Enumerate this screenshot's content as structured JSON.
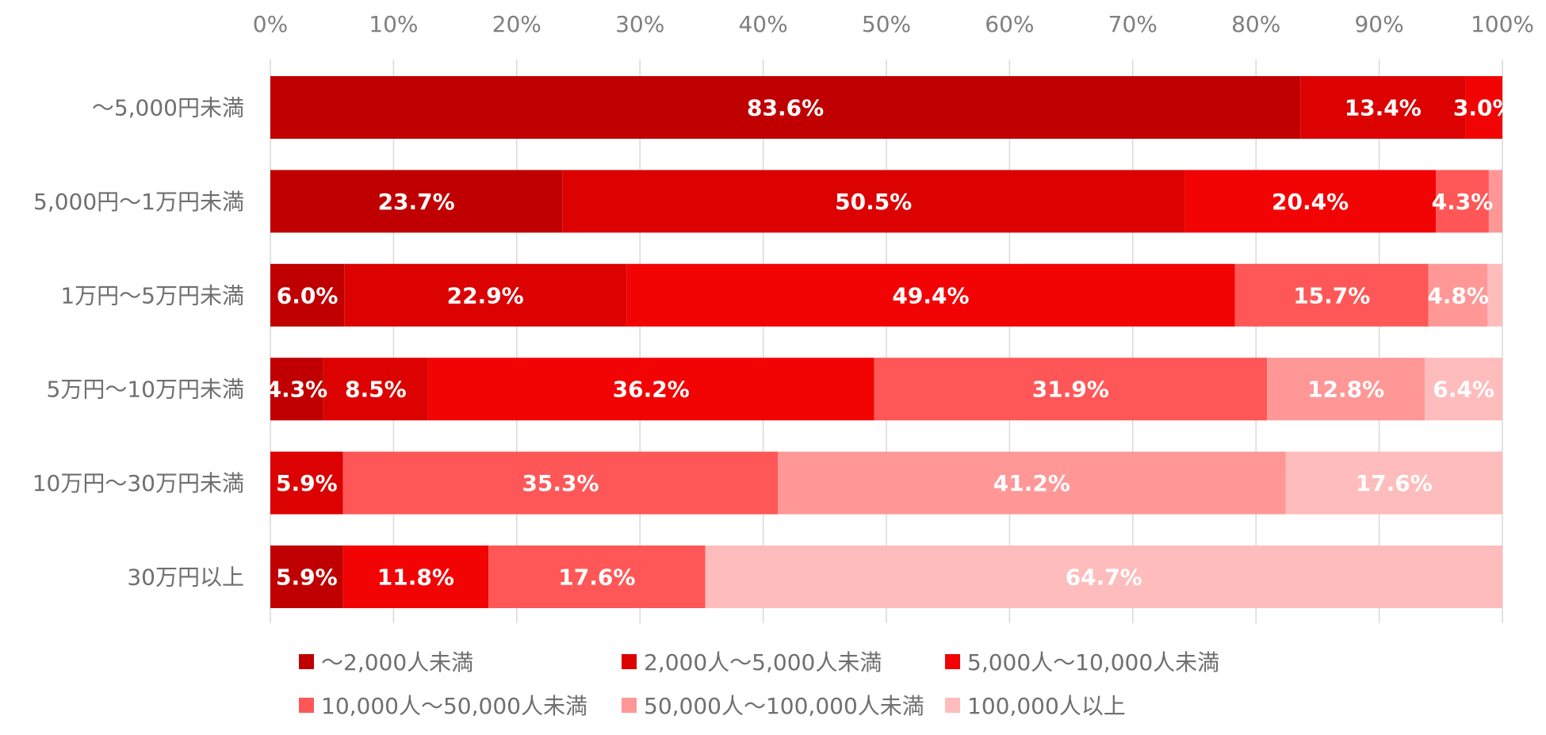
{
  "chart_data": {
    "type": "bar",
    "orientation": "horizontal",
    "stacked": "percent",
    "categories": [
      "〜5,000円未満",
      "5,000円〜1万円未満",
      "1万円〜5万円未満",
      "5万円〜10万円未満",
      "10万円〜30万円未満",
      "30万円以上"
    ],
    "xlim": [
      0,
      100
    ],
    "x_ticks": [
      "0%",
      "10%",
      "20%",
      "30%",
      "40%",
      "50%",
      "60%",
      "70%",
      "80%",
      "90%",
      "100%"
    ],
    "grid": true,
    "legend_position": "bottom",
    "series": [
      {
        "name": "〜2,000人未満",
        "color": "#c00000",
        "values": [
          83.6,
          23.7,
          6.0,
          4.3,
          0,
          5.9
        ],
        "labels": [
          "83.6%",
          "23.7%",
          "6.0%",
          "4.3%",
          "",
          "5.9%"
        ]
      },
      {
        "name": "2,000人〜5,000人未満",
        "color": "#dc0202",
        "values": [
          13.4,
          50.5,
          22.9,
          8.5,
          5.9,
          0
        ],
        "labels": [
          "13.4%",
          "50.5%",
          "22.9%",
          "8.5%",
          "5.9%",
          ""
        ]
      },
      {
        "name": "5,000人〜10,000人未満",
        "color": "#f30404",
        "values": [
          3.0,
          20.4,
          49.4,
          36.2,
          0,
          11.8
        ],
        "labels": [
          "3.0%",
          "20.4%",
          "49.4%",
          "36.2%",
          "",
          "11.8%"
        ]
      },
      {
        "name": "10,000人〜50,000人未満",
        "color": "#ff5757",
        "values": [
          0,
          4.3,
          15.7,
          31.9,
          35.3,
          17.6
        ],
        "labels": [
          "",
          "4.3%",
          "15.7%",
          "31.9%",
          "35.3%",
          "17.6%"
        ]
      },
      {
        "name": "50,000人〜100,000人未満",
        "color": "#ff9797",
        "values": [
          0,
          1.1,
          4.8,
          12.8,
          41.2,
          0
        ],
        "labels": [
          "",
          "",
          "4.8%",
          "12.8%",
          "41.2%",
          ""
        ]
      },
      {
        "name": "100,000人以上",
        "color": "#ffbcbc",
        "values": [
          0,
          0,
          1.2,
          6.4,
          17.6,
          64.7
        ],
        "labels": [
          "",
          "",
          "",
          "6.4%",
          "17.6%",
          "64.7%"
        ]
      }
    ]
  }
}
